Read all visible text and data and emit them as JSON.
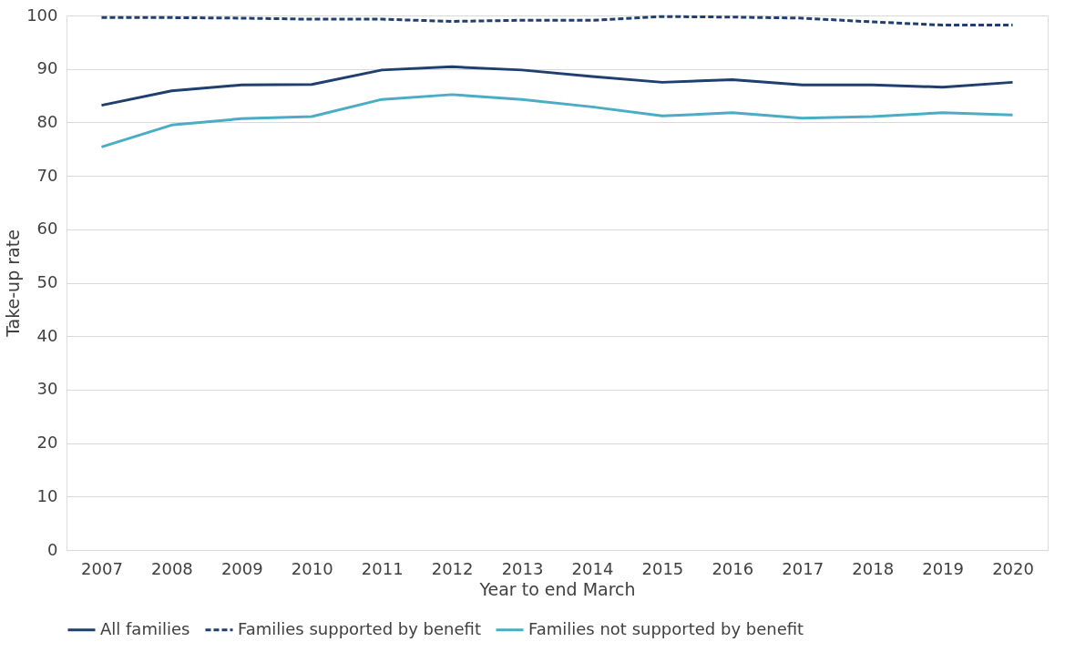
{
  "chart_data": {
    "type": "line",
    "xlabel": "Year to end March",
    "ylabel": "Take-up rate",
    "categories": [
      "2007",
      "2008",
      "2009",
      "2010",
      "2011",
      "2012",
      "2013",
      "2014",
      "2015",
      "2016",
      "2017",
      "2018",
      "2019",
      "2020"
    ],
    "series": [
      {
        "name": "All families",
        "color": "#1f3f6e",
        "line_style": "solid",
        "values": [
          83.2,
          85.9,
          87.0,
          87.1,
          89.8,
          90.4,
          89.8,
          88.6,
          87.5,
          88.0,
          87.0,
          87.0,
          86.6,
          87.5
        ]
      },
      {
        "name": "Families supported by benefit",
        "color": "#1f3f6e",
        "line_style": "dashed",
        "values": [
          99.6,
          99.6,
          99.5,
          99.3,
          99.3,
          98.9,
          99.1,
          99.1,
          99.8,
          99.7,
          99.5,
          98.8,
          98.2,
          98.2
        ]
      },
      {
        "name": "Families not supported by benefit",
        "color": "#4bacc6",
        "line_style": "solid",
        "values": [
          75.4,
          79.5,
          80.7,
          81.1,
          84.3,
          85.2,
          84.3,
          82.9,
          81.2,
          81.8,
          80.8,
          81.1,
          81.8,
          81.4
        ]
      }
    ],
    "ylim": [
      0,
      100
    ],
    "yticks": [
      0,
      10,
      20,
      30,
      40,
      50,
      60,
      70,
      80,
      90,
      100
    ],
    "grid": "y",
    "legend": "bottom",
    "marker": "none"
  }
}
